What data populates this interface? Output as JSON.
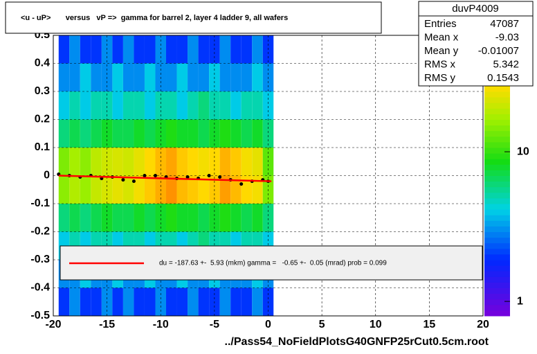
{
  "chart_data": {
    "type": "heatmap",
    "title": "<u - uP>       versus   vP =>  gamma for barrel 2, layer 4 ladder 9, all wafers",
    "footer": "../Pass54_NoFieldPlotsG40GNFP25rCut0.5cm.root",
    "xlim": [
      -20,
      20
    ],
    "xticks": [
      -20,
      -15,
      -10,
      -5,
      0,
      5,
      10,
      15,
      20
    ],
    "ylim": [
      -0.5,
      0.5
    ],
    "yticks": [
      -0.5,
      -0.4,
      -0.3,
      -0.2,
      -0.1,
      0,
      0.1,
      0.2,
      0.3,
      0.4,
      0.5
    ],
    "grid": true,
    "zlog": true,
    "zlim": [
      0.8,
      60
    ],
    "zticks": [
      1,
      10
    ],
    "xbins": [
      -19.5,
      -18.5,
      -17.5,
      -16.5,
      -15.5,
      -14.5,
      -13.5,
      -12.5,
      -11.5,
      -10.5,
      -9.5,
      -8.5,
      -7.5,
      -6.5,
      -5.5,
      -4.5,
      -3.5,
      -2.5,
      -1.5,
      -0.5,
      0.5
    ],
    "ybins": [
      -0.5,
      -0.4,
      -0.3,
      -0.2,
      -0.1,
      0,
      0.1,
      0.2,
      0.3,
      0.4,
      0.5
    ],
    "z": [
      [
        2,
        3,
        2,
        2,
        3,
        2,
        3,
        2,
        2,
        3,
        2,
        2,
        3,
        2,
        2,
        3,
        2,
        2,
        3,
        2
      ],
      [
        3,
        3,
        4,
        3,
        3,
        4,
        3,
        3,
        4,
        3,
        3,
        4,
        3,
        3,
        4,
        3,
        3,
        3,
        4,
        3
      ],
      [
        4,
        5,
        4,
        5,
        5,
        4,
        5,
        5,
        4,
        5,
        5,
        4,
        5,
        6,
        5,
        5,
        4,
        5,
        5,
        4
      ],
      [
        6,
        7,
        6,
        7,
        8,
        7,
        7,
        8,
        7,
        8,
        9,
        8,
        8,
        7,
        8,
        9,
        8,
        7,
        8,
        6
      ],
      [
        15,
        18,
        16,
        20,
        22,
        24,
        22,
        26,
        30,
        34,
        38,
        32,
        30,
        28,
        30,
        36,
        32,
        28,
        26,
        14
      ],
      [
        14,
        17,
        15,
        19,
        21,
        22,
        21,
        24,
        28,
        32,
        35,
        30,
        28,
        26,
        28,
        33,
        30,
        26,
        24,
        12
      ],
      [
        6,
        7,
        6,
        7,
        8,
        7,
        7,
        8,
        7,
        8,
        9,
        8,
        8,
        7,
        8,
        9,
        8,
        7,
        8,
        6
      ],
      [
        4,
        5,
        4,
        5,
        5,
        4,
        5,
        5,
        4,
        5,
        5,
        4,
        5,
        6,
        5,
        5,
        4,
        5,
        5,
        4
      ],
      [
        3,
        3,
        4,
        3,
        3,
        4,
        3,
        3,
        4,
        3,
        3,
        4,
        3,
        3,
        4,
        3,
        3,
        3,
        4,
        3
      ],
      [
        2,
        3,
        2,
        2,
        3,
        2,
        3,
        2,
        2,
        3,
        2,
        2,
        3,
        2,
        2,
        3,
        2,
        2,
        3,
        2
      ]
    ],
    "profile": {
      "color": "#000000",
      "x": [
        -19.5,
        -18.5,
        -17.5,
        -16.5,
        -15.5,
        -14.5,
        -13.5,
        -12.5,
        -11.5,
        -10.5,
        -9.5,
        -8.5,
        -7.5,
        -6.5,
        -5.5,
        -4.5,
        -3.5,
        -2.5,
        -1.5,
        -0.5,
        0
      ],
      "y": [
        0.005,
        0,
        -0.005,
        0,
        -0.01,
        -0.005,
        -0.015,
        -0.02,
        0,
        0,
        -0.005,
        -0.01,
        -0.005,
        -0.01,
        0,
        -0.005,
        -0.015,
        -0.03,
        -0.02,
        -0.015,
        -0.02
      ]
    },
    "fit": {
      "color": "#ff0000",
      "x": [
        -19.5,
        0.3
      ],
      "y": [
        0,
        -0.02
      ]
    },
    "legend_text": "du = -187.63 +-  5.93 (mkm) gamma =   -0.65 +-  0.05 (mrad) prob = 0.099",
    "stats": {
      "name": "duvP4009",
      "rows": [
        [
          "Entries",
          "47087"
        ],
        [
          "Mean x",
          "-9.03"
        ],
        [
          "Mean y",
          "-0.01007"
        ],
        [
          "RMS x",
          "5.342"
        ],
        [
          "RMS y",
          "0.1543"
        ]
      ]
    }
  }
}
